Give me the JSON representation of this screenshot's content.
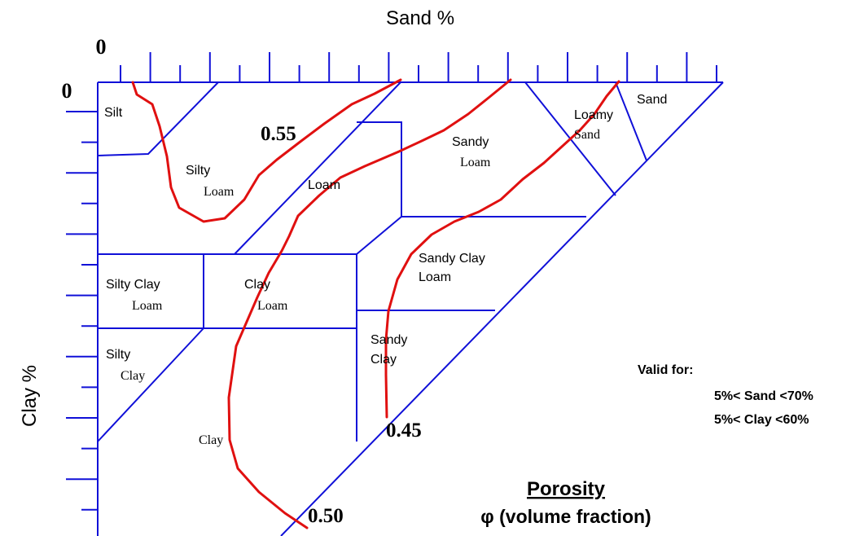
{
  "axes": {
    "top_title": "Sand %",
    "left_title": "Clay %",
    "top_zero": "0",
    "left_zero": "0"
  },
  "zones": {
    "silt": "Silt",
    "silty_loam": [
      "Silty",
      "Loam"
    ],
    "loam": "Loam",
    "sandy_loam": [
      "Sandy",
      "Loam"
    ],
    "loamy_sand": [
      "Loamy",
      "Sand"
    ],
    "sand": "Sand",
    "silty_clay_loam": [
      "Silty Clay",
      "Loam"
    ],
    "clay_loam": [
      "Clay",
      "Loam"
    ],
    "sandy_clay_loam": [
      "Sandy Clay",
      "Loam"
    ],
    "silty_clay": [
      "Silty",
      "Clay"
    ],
    "sandy_clay": [
      "Sandy",
      "Clay"
    ],
    "clay": "Clay"
  },
  "contours": [
    {
      "label": "0.55"
    },
    {
      "label": "0.50"
    },
    {
      "label": "0.45"
    }
  ],
  "validity": {
    "heading": "Valid for:",
    "sand_range": "5%< Sand <70%",
    "clay_range": "5%< Clay <60%"
  },
  "legend": {
    "title": "Porosity",
    "subtitle": "φ (volume fraction)"
  },
  "colors": {
    "boundary_lines": "#1010d8",
    "contour_lines": "#e01010"
  }
}
